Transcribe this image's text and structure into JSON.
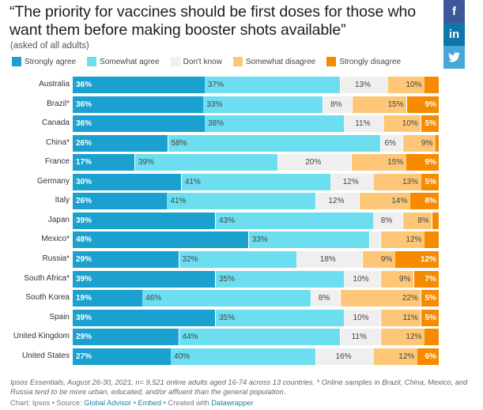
{
  "header": {
    "title": "“The priority for vaccines should be first doses for those who want them before making booster shots available”",
    "subtitle": "(asked of all adults)"
  },
  "social": [
    {
      "name": "facebook",
      "label": "f",
      "color": "#3b5998"
    },
    {
      "name": "linkedin",
      "label": "in",
      "color": "#0e76a8"
    },
    {
      "name": "twitter",
      "label": "🐦",
      "color": "#48a7d6"
    }
  ],
  "chart_data": {
    "type": "bar",
    "orientation": "horizontal",
    "stacked": true,
    "title": "“The priority for vaccines should be first doses for those who want them before making booster shots available”",
    "subtitle": "(asked of all adults)",
    "xlabel": "",
    "ylabel": "",
    "xlim": [
      0,
      100
    ],
    "legend_position": "top-left",
    "categories": [
      "Australia",
      "Brazil*",
      "Canada",
      "China*",
      "France",
      "Germany",
      "Italy",
      "Japan",
      "Mexico*",
      "Russia*",
      "South Africa*",
      "South Korea",
      "Spain",
      "United Kingdom",
      "United States"
    ],
    "series": [
      {
        "name": "Strongly agree",
        "color": "#1aa1cf",
        "values": [
          36,
          36,
          36,
          26,
          17,
          30,
          26,
          39,
          48,
          29,
          39,
          19,
          39,
          29,
          27
        ]
      },
      {
        "name": "Somewhat agree",
        "color": "#6cdef0",
        "values": [
          37,
          33,
          38,
          58,
          39,
          41,
          41,
          43,
          33,
          32,
          35,
          46,
          35,
          44,
          40
        ]
      },
      {
        "name": "Don't know",
        "color": "#efefef",
        "values": [
          13,
          8,
          11,
          6,
          20,
          12,
          12,
          8,
          3,
          18,
          10,
          8,
          10,
          11,
          16
        ]
      },
      {
        "name": "Somewhat disagree",
        "color": "#fdc777",
        "values": [
          10,
          15,
          10,
          9,
          15,
          13,
          14,
          8,
          12,
          9,
          9,
          22,
          11,
          12,
          12
        ]
      },
      {
        "name": "Strongly disagree",
        "color": "#f78b00",
        "values": [
          4,
          9,
          5,
          1,
          9,
          5,
          8,
          2,
          4,
          12,
          7,
          5,
          5,
          4,
          6
        ]
      }
    ],
    "shown_labels": [
      [
        "36%",
        "37%",
        "13%",
        "10%",
        ""
      ],
      [
        "36%",
        "33%",
        "8%",
        "15%",
        "9%"
      ],
      [
        "36%",
        "38%",
        "11%",
        "10%",
        "5%"
      ],
      [
        "26%",
        "58%",
        "6%",
        "9%",
        ""
      ],
      [
        "17%",
        "39%",
        "20%",
        "15%",
        "9%"
      ],
      [
        "30%",
        "41%",
        "12%",
        "13%",
        "5%"
      ],
      [
        "26%",
        "41%",
        "12%",
        "14%",
        "8%"
      ],
      [
        "39%",
        "43%",
        "8%",
        "8%",
        ""
      ],
      [
        "48%",
        "33%",
        "",
        "12%",
        ""
      ],
      [
        "29%",
        "32%",
        "18%",
        "9%",
        "12%"
      ],
      [
        "39%",
        "35%",
        "10%",
        "9%",
        "7%"
      ],
      [
        "19%",
        "46%",
        "8%",
        "22%",
        "5%"
      ],
      [
        "39%",
        "35%",
        "10%",
        "11%",
        "5%"
      ],
      [
        "29%",
        "44%",
        "11%",
        "12%",
        ""
      ],
      [
        "27%",
        "40%",
        "16%",
        "12%",
        "6%"
      ]
    ]
  },
  "footer": {
    "note": "Ipsos Essentials, August 26-30, 2021, n= 9,521 online adults aged 16-74 across 13 countries. * Online samples in Brazil, China, Mexico, and Russia tend to be more urban, educated, and/or affluent than the general population.",
    "chart_prefix": "Chart: Ipsos • Source: ",
    "source_link": "Global Advisor",
    "sep1": " • ",
    "embed_link": "Embed",
    "sep2": " • Created with ",
    "datawrapper_link": "Datawrapper"
  }
}
